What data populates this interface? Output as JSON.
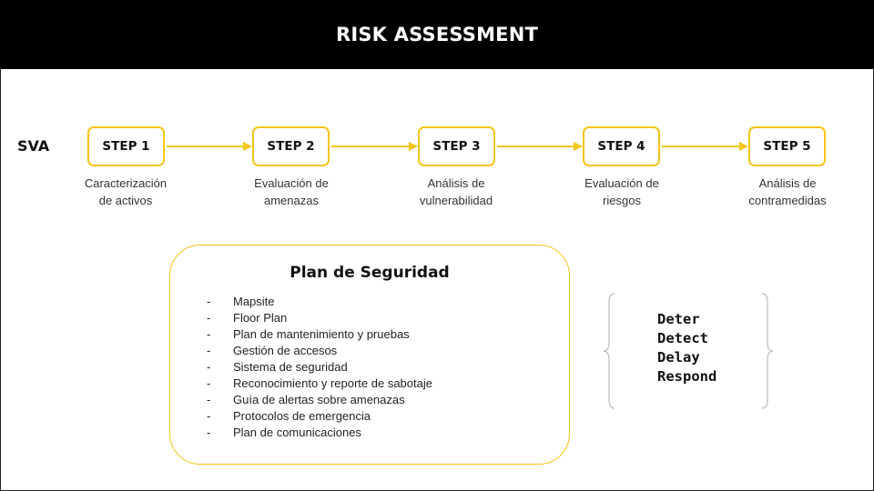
{
  "header": {
    "title": "RISK ASSESSMENT"
  },
  "flow": {
    "row_label": "SVA",
    "steps": [
      {
        "label": "STEP 1",
        "description_line1": "Caracterización",
        "description_line2": "de activos"
      },
      {
        "label": "STEP 2",
        "description_line1": "Evaluación de",
        "description_line2": "amenazas"
      },
      {
        "label": "STEP 3",
        "description_line1": "Análisis de",
        "description_line2": "vulnerabilidad"
      },
      {
        "label": "STEP 4",
        "description_line1": "Evaluación de",
        "description_line2": "riesgos"
      },
      {
        "label": "STEP 5",
        "description_line1": "Análisis de",
        "description_line2": "contramedidas"
      }
    ]
  },
  "plan": {
    "title": "Plan de Seguridad",
    "bullet": "-",
    "items": [
      "Mapsite",
      "Floor Plan",
      "Plan de mantenimiento y pruebas",
      "Gestión de accesos",
      "Sistema de seguridad",
      "Reconocimiento y reporte de sabotaje",
      "Guía de alertas sobre amenazas",
      "Protocolos de emergencia",
      "Plan de comunicaciones"
    ]
  },
  "strategy": {
    "items": [
      "Deter",
      "Detect",
      "Delay",
      "Respond"
    ]
  },
  "colors": {
    "accent": "#f5c518",
    "header_bg": "#000000",
    "brace": "#bbbbbb"
  }
}
